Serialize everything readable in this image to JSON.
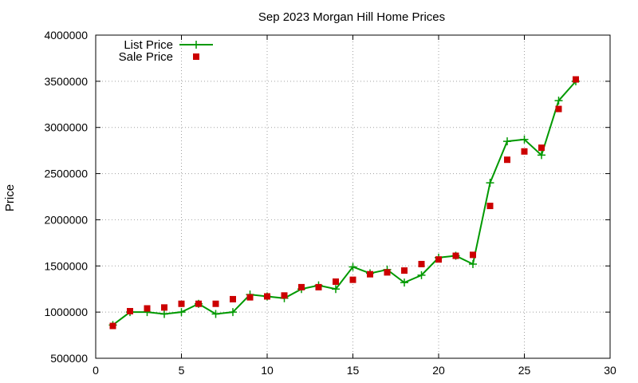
{
  "chart_data": {
    "type": "line",
    "title": "Sep 2023 Morgan Hill Home Prices",
    "xlabel": "",
    "ylabel": "Price",
    "xlim": [
      0,
      30
    ],
    "ylim": [
      500000,
      4000000
    ],
    "xticks": [
      0,
      5,
      10,
      15,
      20,
      25,
      30
    ],
    "yticks": [
      500000,
      1000000,
      1500000,
      2000000,
      2500000,
      3000000,
      3500000,
      4000000
    ],
    "grid": true,
    "legend_position": "top-left",
    "series": [
      {
        "name": "List Price",
        "style": "line-points",
        "color": "#009900",
        "x": [
          1,
          2,
          3,
          4,
          5,
          6,
          7,
          8,
          9,
          10,
          11,
          12,
          13,
          14,
          15,
          16,
          17,
          18,
          19,
          20,
          21,
          22,
          23,
          24,
          25,
          26,
          27,
          28
        ],
        "values": [
          860000,
          1000000,
          1000000,
          980000,
          1000000,
          1090000,
          980000,
          1000000,
          1190000,
          1170000,
          1150000,
          1250000,
          1290000,
          1250000,
          1490000,
          1420000,
          1460000,
          1320000,
          1400000,
          1590000,
          1610000,
          1520000,
          2400000,
          2850000,
          2870000,
          2700000,
          3290000,
          3500000
        ]
      },
      {
        "name": "Sale Price",
        "style": "points",
        "color": "#cc0000",
        "x": [
          1,
          2,
          3,
          4,
          5,
          6,
          7,
          8,
          9,
          10,
          11,
          12,
          13,
          14,
          15,
          16,
          17,
          18,
          19,
          20,
          21,
          22,
          23,
          24,
          25,
          26,
          27,
          28
        ],
        "values": [
          850000,
          1010000,
          1040000,
          1050000,
          1090000,
          1090000,
          1090000,
          1140000,
          1160000,
          1170000,
          1180000,
          1270000,
          1270000,
          1330000,
          1350000,
          1410000,
          1430000,
          1450000,
          1520000,
          1570000,
          1610000,
          1620000,
          2150000,
          2650000,
          2740000,
          2780000,
          3200000,
          3520000
        ]
      }
    ]
  }
}
